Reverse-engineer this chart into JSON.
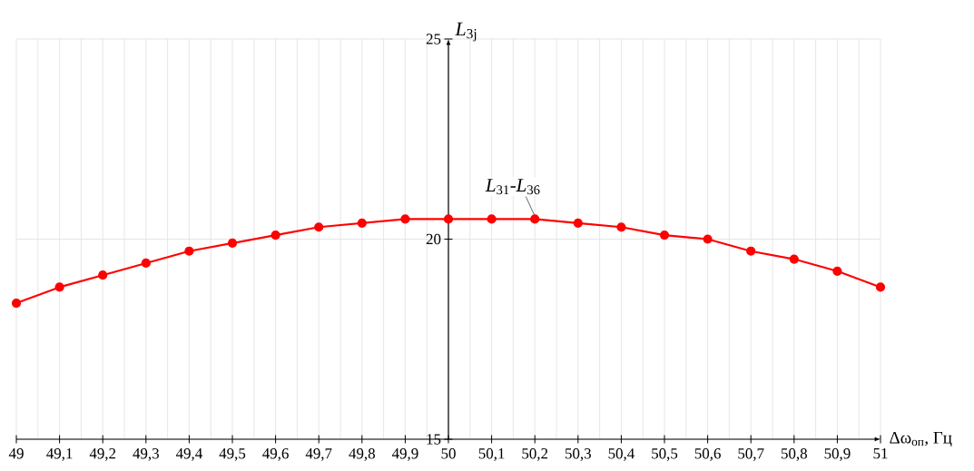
{
  "chart_data": {
    "type": "line",
    "xlabel": "Δω$_{оп}$, Гц",
    "ylabel": "*L*$_{3j}$",
    "x": [
      49,
      49.1,
      49.2,
      49.3,
      49.4,
      49.5,
      49.6,
      49.7,
      49.8,
      49.9,
      50,
      50.1,
      50.2,
      50.3,
      50.4,
      50.5,
      50.6,
      50.7,
      50.8,
      50.9,
      51
    ],
    "series": [
      {
        "color": "#ff0000",
        "values": [
          18.4,
          18.8,
          19.1,
          19.4,
          19.7,
          19.9,
          20.1,
          20.3,
          20.4,
          20.5,
          20.5,
          20.5,
          20.5,
          20.4,
          20.3,
          20.1,
          20.0,
          19.7,
          19.5,
          19.2,
          18.8
        ]
      }
    ],
    "xlim": [
      49,
      51
    ],
    "ylim": [
      15,
      25
    ],
    "xticks": [
      49,
      {
        "value": 49.1,
        "label": "49,1"
      },
      {
        "value": 49.2,
        "label": "49,2"
      },
      {
        "value": 49.3,
        "label": "49,3"
      },
      {
        "value": 49.4,
        "label": "49,4"
      },
      {
        "value": 49.5,
        "label": "49,5"
      },
      {
        "value": 49.6,
        "label": "49,6"
      },
      {
        "value": 49.7,
        "label": "49,7"
      },
      {
        "value": 49.8,
        "label": "49,8"
      },
      {
        "value": 49.9,
        "label": "49,9"
      },
      50,
      {
        "value": 50.1,
        "label": "50,1"
      },
      {
        "value": 50.2,
        "label": "50,2"
      },
      {
        "value": 50.3,
        "label": "50,3"
      },
      {
        "value": 50.4,
        "label": "50,4"
      },
      {
        "value": 50.5,
        "label": "50,5"
      },
      {
        "value": 50.6,
        "label": "50,6"
      },
      {
        "value": 50.7,
        "label": "50,7"
      },
      {
        "value": 50.8,
        "label": "50,8"
      },
      {
        "value": 50.9,
        "label": "50,9"
      },
      51
    ],
    "yticks": [
      15,
      20,
      25
    ],
    "annotations": [
      {
        "text": "*L*$_{31}$-*L*$_{36}$",
        "x": 50.2,
        "y": 20.5
      }
    ],
    "grid": true,
    "marker": "circle",
    "line_style": "solid"
  }
}
